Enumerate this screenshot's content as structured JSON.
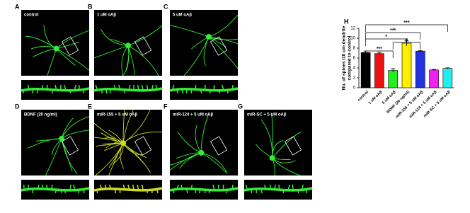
{
  "panels": [
    {
      "letter": "A",
      "label": "control"
    },
    {
      "letter": "B",
      "label": "1 uM oAβ"
    },
    {
      "letter": "C",
      "label": "5 uM oAβ"
    },
    {
      "letter": "D",
      "label": "BDNF (20 ng/ml)"
    },
    {
      "letter": "E",
      "label": "miR-155 + 5 uM oAβ"
    },
    {
      "letter": "F",
      "label": "miR-124 + 5 uM oAβ"
    },
    {
      "letter": "G",
      "label": "miR-SC + 5 uM oAβ"
    }
  ],
  "chart_data": {
    "type": "bar",
    "title": "H",
    "ylabel": [
      "No. of spines /10 um dendrite",
      "compared to control"
    ],
    "categories": [
      "control",
      "1 uM oAβ",
      "5 uM oAβ",
      "BDNF (20 ng/ml)",
      "miR-155 + 5 uM oAβ",
      "miR-124 + 5 uM oAβ",
      "miR-SC + 5 uM oAβ"
    ],
    "values": [
      7.1,
      6.9,
      3.5,
      9.0,
      7.4,
      3.6,
      3.9
    ],
    "errors": [
      0.3,
      0.25,
      0.35,
      0.45,
      0.12,
      0.1,
      0.12
    ],
    "colors": [
      "#000000",
      "#ee1111",
      "#22ee22",
      "#ffee00",
      "#2233dd",
      "#ee22ee",
      "#22eeee"
    ],
    "ylim": [
      0,
      12
    ],
    "yticks": [
      0,
      2,
      4,
      6,
      8,
      10,
      12
    ],
    "annotations": [
      "***",
      "*",
      "***",
      "#",
      "***"
    ]
  }
}
